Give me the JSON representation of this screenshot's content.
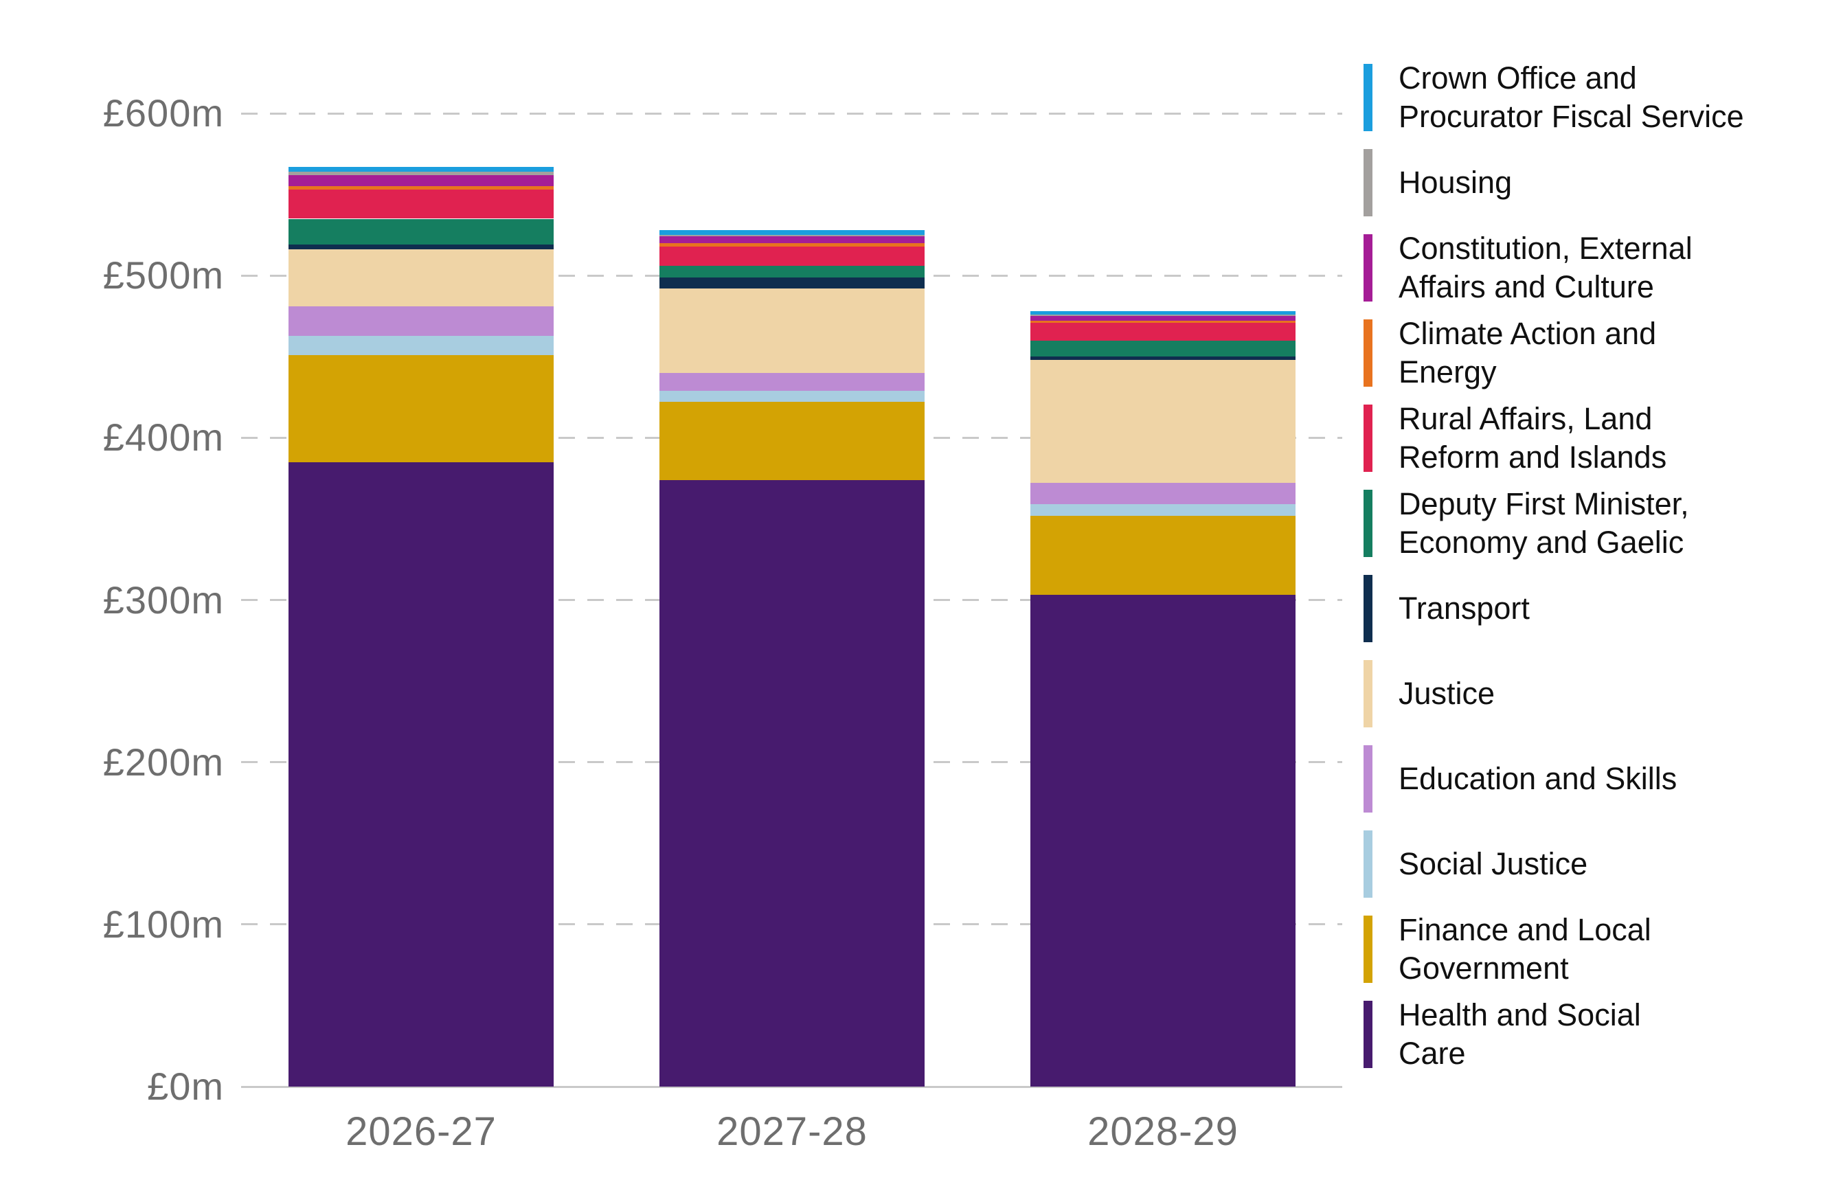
{
  "chart_data": {
    "type": "stacked-bar",
    "title": "",
    "unit": "£m",
    "categories": [
      "2026-27",
      "2027-28",
      "2028-29"
    ],
    "ylim": [
      0,
      600
    ],
    "ytick_step": 100,
    "yticks": [
      {
        "value": 0,
        "label": "£0m"
      },
      {
        "value": 100,
        "label": "£100m"
      },
      {
        "value": 200,
        "label": "£200m"
      },
      {
        "value": 300,
        "label": "£300m"
      },
      {
        "value": 400,
        "label": "£400m"
      },
      {
        "value": 500,
        "label": "£500m"
      },
      {
        "value": 600,
        "label": "£600m"
      }
    ],
    "grid": "dashed-horizontal",
    "legend_position": "right",
    "stacking": "bottom-to-top is reverse of legend order (Health and Social Care at bottom)",
    "axis_text_color": "#6e6e6e",
    "grid_color": "#c9c9c9",
    "series": [
      {
        "name": "Crown Office and Procurator Fiscal Service",
        "legend_label": "Crown Office and\nProcurator Fiscal Service",
        "color": "#1b9ede",
        "values": [
          3,
          3,
          2
        ]
      },
      {
        "name": "Housing",
        "legend_label": "Housing",
        "color": "#a3a09e",
        "values": [
          2,
          1,
          1
        ]
      },
      {
        "name": "Constitution, External Affairs and Culture",
        "legend_label": "Constitution, External\nAffairs and Culture",
        "color": "#a51d96",
        "values": [
          7,
          4,
          3
        ]
      },
      {
        "name": "Climate Action and Energy",
        "legend_label": "Climate Action and\nEnergy",
        "color": "#e8731f",
        "values": [
          2,
          2,
          1
        ]
      },
      {
        "name": "Rural Affairs, Land Reform and Islands",
        "legend_label": "Rural Affairs, Land\nReform and Islands",
        "color": "#e02250",
        "values": [
          18,
          12,
          11
        ]
      },
      {
        "name": "Deputy First Minister, Economy and Gaelic",
        "legend_label": "Deputy First Minister,\nEconomy and Gaelic",
        "color": "#157e60",
        "values": [
          16,
          7,
          10
        ]
      },
      {
        "name": "Transport",
        "legend_label": "Transport",
        "color": "#0f2e4f",
        "values": [
          3,
          7,
          2
        ]
      },
      {
        "name": "Justice",
        "legend_label": "Justice",
        "color": "#efd4a6",
        "values": [
          35,
          52,
          76
        ]
      },
      {
        "name": "Education and Skills",
        "legend_label": "Education and Skills",
        "color": "#bd8bd3",
        "values": [
          18,
          11,
          13
        ]
      },
      {
        "name": "Social Justice",
        "legend_label": "Social Justice",
        "color": "#a8cde0",
        "values": [
          12,
          7,
          7
        ]
      },
      {
        "name": "Finance and Local Government",
        "legend_label": "Finance and Local\nGovernment",
        "color": "#d3a304",
        "values": [
          66,
          48,
          49
        ]
      },
      {
        "name": "Health and Social Care",
        "legend_label": "Health and Social\nCare",
        "color": "#471b6e",
        "values": [
          385,
          374,
          303
        ]
      }
    ]
  }
}
